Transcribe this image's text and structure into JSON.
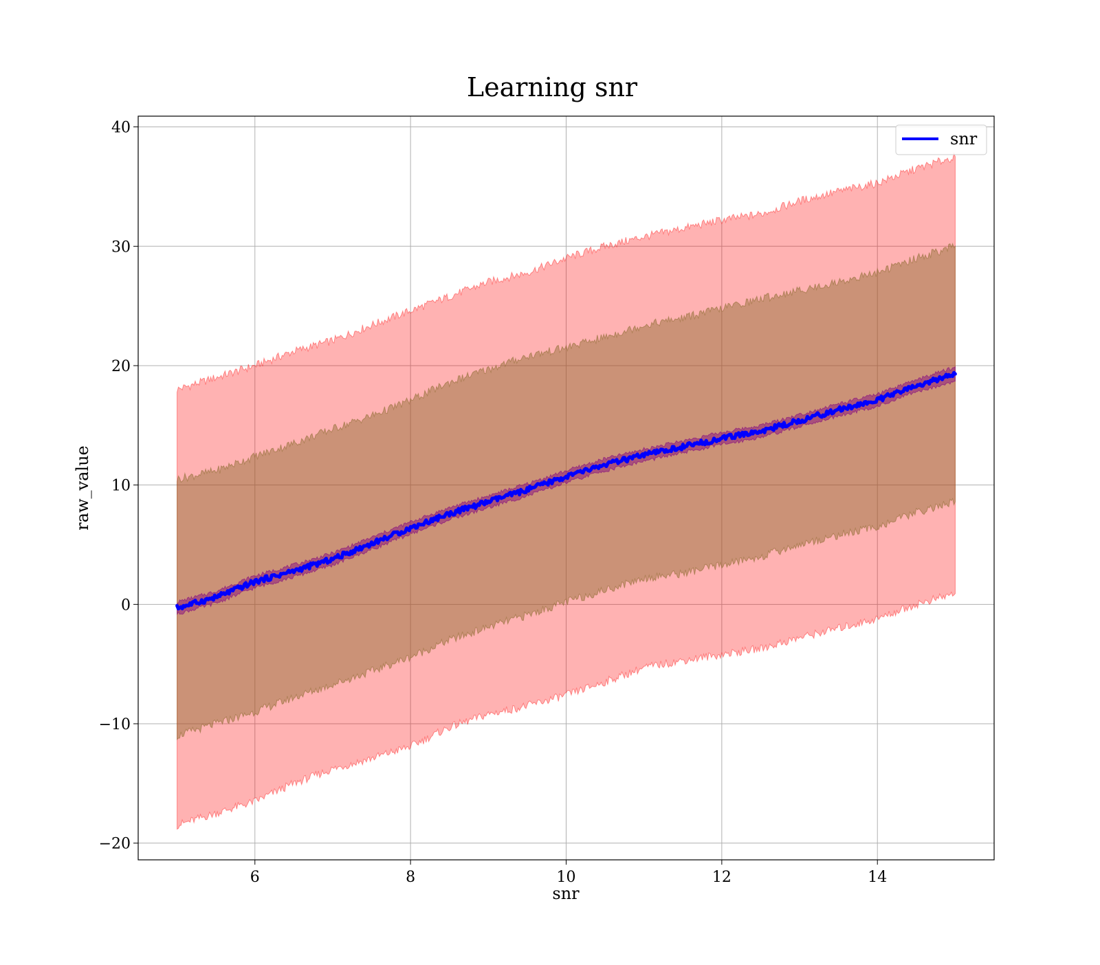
{
  "chart_data": {
    "type": "line",
    "title": "Learning snr",
    "xlabel": "snr",
    "ylabel": "raw_value",
    "xlim": [
      4.5,
      15.5
    ],
    "ylim": [
      -21.4,
      40.9
    ],
    "xticks": [
      6,
      8,
      10,
      12,
      14
    ],
    "yticks": [
      -20,
      -10,
      0,
      10,
      20,
      30,
      40
    ],
    "xtick_labels": [
      "6",
      "8",
      "10",
      "12",
      "14"
    ],
    "ytick_labels": [
      "−20",
      "−10",
      "0",
      "10",
      "20",
      "30",
      "40"
    ],
    "grid": true,
    "legend": {
      "position": "top-right",
      "entries": [
        "snr"
      ]
    },
    "x": [
      5,
      5.5,
      6,
      6.5,
      7,
      7.5,
      8,
      8.5,
      9,
      9.5,
      10,
      10.5,
      11,
      11.5,
      12,
      12.5,
      13,
      13.5,
      14,
      14.5,
      15
    ],
    "series": [
      {
        "name": "snr",
        "color": "#0000ff",
        "values": [
          -0.3,
          0.6,
          1.9,
          2.8,
          3.8,
          5.1,
          6.4,
          7.6,
          8.6,
          9.6,
          10.7,
          11.7,
          12.5,
          13.2,
          13.9,
          14.5,
          15.4,
          16.3,
          17.1,
          18.3,
          19.3
        ]
      }
    ],
    "bands": [
      {
        "color": "#ff0000",
        "opacity": 0.3,
        "lower": [
          -18.5,
          -17.5,
          -16.5,
          -15.0,
          -13.8,
          -12.9,
          -11.9,
          -10.3,
          -9.2,
          -8.5,
          -7.6,
          -6.5,
          -5.3,
          -4.7,
          -4.2,
          -3.7,
          -2.8,
          -2.0,
          -1.2,
          0.0,
          0.9
        ],
        "upper": [
          18.0,
          19.0,
          20.0,
          21.2,
          22.1,
          23.4,
          24.6,
          25.8,
          27.0,
          27.8,
          29.0,
          30.0,
          30.8,
          31.5,
          32.2,
          32.7,
          33.8,
          34.6,
          35.3,
          36.5,
          37.5
        ]
      },
      {
        "color": "#8b6a2e",
        "opacity": 0.45,
        "lower": [
          -11.0,
          -10.0,
          -9.0,
          -7.8,
          -6.7,
          -5.6,
          -4.4,
          -3.0,
          -1.9,
          -0.9,
          0.2,
          1.2,
          2.2,
          2.6,
          3.3,
          4.0,
          5.0,
          5.8,
          6.5,
          7.7,
          8.6
        ],
        "upper": [
          10.5,
          11.2,
          12.4,
          13.5,
          14.7,
          15.8,
          17.1,
          18.6,
          19.7,
          20.8,
          21.5,
          22.4,
          23.4,
          24.0,
          24.8,
          25.6,
          26.3,
          27.0,
          27.8,
          29.0,
          30.0
        ]
      },
      {
        "color": "#800080",
        "opacity": 0.45,
        "lower": [
          -0.8,
          0.1,
          1.4,
          2.3,
          3.3,
          4.6,
          5.9,
          7.1,
          8.1,
          9.1,
          10.2,
          11.2,
          12.0,
          12.7,
          13.4,
          14.0,
          14.9,
          15.8,
          16.6,
          17.8,
          18.7
        ],
        "upper": [
          0.2,
          1.1,
          2.4,
          3.3,
          4.3,
          5.6,
          6.9,
          8.1,
          9.1,
          10.1,
          11.2,
          12.2,
          13.0,
          13.7,
          14.4,
          15.0,
          15.9,
          16.8,
          17.6,
          18.8,
          19.9
        ]
      }
    ]
  }
}
